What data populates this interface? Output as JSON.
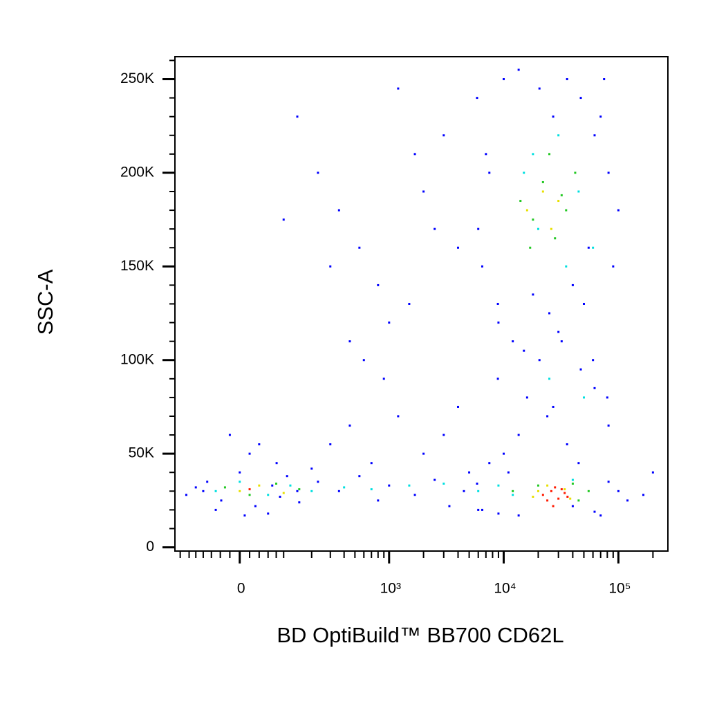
{
  "chart_data": {
    "type": "scatter",
    "xlabel": "BD OptiBuild™ BB700 CD62L",
    "ylabel": "SSC-A",
    "xscale": "biexponential",
    "xlim": [
      -170,
      270000
    ],
    "ylim": [
      -2000,
      262000
    ],
    "xticks": [
      0,
      {
        "value": 1000,
        "label": "10³"
      },
      {
        "value": 10000,
        "label": "10⁴"
      },
      {
        "value": 100000,
        "label": "10⁵"
      }
    ],
    "xminorticks": [
      -150,
      -120,
      -100,
      -80,
      -60,
      -40,
      -20,
      20,
      40,
      60,
      80,
      100,
      200,
      300,
      400,
      500,
      600,
      700,
      800,
      900,
      2000,
      3000,
      4000,
      5000,
      6000,
      7000,
      8000,
      9000,
      20000,
      30000,
      40000,
      50000,
      60000,
      70000,
      80000,
      90000,
      200000
    ],
    "yticks": [
      0,
      {
        "value": 50000,
        "label": "50K"
      },
      {
        "value": 100000,
        "label": "100K"
      },
      {
        "value": 150000,
        "label": "150K"
      },
      {
        "value": 200000,
        "label": "200K"
      },
      {
        "value": 250000,
        "label": "250K"
      }
    ],
    "yminorticks": [
      10000,
      20000,
      30000,
      40000,
      60000,
      70000,
      80000,
      90000,
      110000,
      120000,
      130000,
      140000,
      160000,
      170000,
      180000,
      190000,
      210000,
      220000,
      230000,
      240000,
      260000
    ],
    "series": [
      {
        "color": "#0000ff",
        "x": [
          -129,
          -70,
          -38,
          0,
          32,
          81,
          143,
          -100,
          -50,
          20,
          60,
          110,
          200,
          -20,
          40,
          90,
          150,
          -80,
          10,
          70,
          230,
          360,
          548,
          800,
          1000,
          1680,
          2500,
          3360,
          4500,
          5860,
          300,
          450,
          700,
          1200,
          2000,
          3000,
          4000,
          5000,
          6500,
          7500,
          143,
          230,
          360,
          548,
          800,
          1000,
          1200,
          1680,
          2000,
          2500,
          100,
          300,
          450,
          600,
          900,
          1500,
          3000,
          4000,
          5860,
          6500,
          7500,
          8900,
          10000,
          13500,
          20500,
          27000,
          35700,
          47000,
          62000,
          82000,
          100000,
          6000,
          9000,
          12000,
          18000,
          25000,
          40000,
          55000,
          70000,
          90000,
          7000,
          15000,
          30000,
          50000,
          75000,
          8900,
          13500,
          20500,
          27000,
          35700,
          47000,
          62000,
          82000,
          10000,
          16000,
          24000,
          32000,
          45000,
          60000,
          80000,
          6000,
          9000,
          13500,
          40000,
          62000,
          82000,
          100000,
          120000,
          165000,
          200000,
          11000,
          70000
        ],
        "values": [
          28000,
          35000,
          25000,
          40000,
          22000,
          45000,
          30000,
          32000,
          20000,
          50000,
          18000,
          38000,
          42000,
          60000,
          55000,
          27000,
          24000,
          30000,
          17000,
          33000,
          35000,
          30000,
          38000,
          25000,
          33000,
          28000,
          36000,
          22000,
          30000,
          34000,
          55000,
          65000,
          45000,
          70000,
          50000,
          60000,
          75000,
          40000,
          20000,
          45000,
          230000,
          200000,
          180000,
          160000,
          140000,
          120000,
          245000,
          210000,
          190000,
          170000,
          175000,
          150000,
          110000,
          100000,
          90000,
          130000,
          220000,
          160000,
          240000,
          150000,
          200000,
          130000,
          250000,
          255000,
          245000,
          230000,
          250000,
          240000,
          220000,
          200000,
          180000,
          170000,
          120000,
          110000,
          135000,
          125000,
          140000,
          160000,
          230000,
          150000,
          210000,
          105000,
          115000,
          130000,
          250000,
          90000,
          60000,
          100000,
          75000,
          55000,
          95000,
          85000,
          65000,
          50000,
          80000,
          70000,
          110000,
          45000,
          100000,
          80000,
          20000,
          18000,
          17000,
          22000,
          19000,
          35000,
          30000,
          25000,
          28000,
          40000,
          40000,
          17000
        ]
      },
      {
        "color": "#00e0e0",
        "x": [
          -50,
          0,
          60,
          120,
          200,
          400,
          700,
          1500,
          3000,
          6000,
          12000,
          15000,
          20000,
          30000,
          45000,
          60000,
          25000,
          18000,
          35000,
          50000,
          9000,
          40000
        ],
        "values": [
          30000,
          35000,
          28000,
          33000,
          30000,
          32000,
          31000,
          33000,
          34000,
          30000,
          28000,
          200000,
          170000,
          220000,
          190000,
          160000,
          90000,
          210000,
          150000,
          80000,
          33000,
          36000
        ]
      },
      {
        "color": "#22c822",
        "x": [
          -30,
          20,
          80,
          150,
          14000,
          18000,
          22000,
          28000,
          35000,
          42000,
          17000,
          25000,
          32000,
          12000,
          45000,
          20000,
          40000,
          55000
        ],
        "values": [
          32000,
          28000,
          34000,
          31000,
          185000,
          175000,
          195000,
          165000,
          180000,
          200000,
          160000,
          210000,
          188000,
          30000,
          25000,
          33000,
          34000,
          30000
        ]
      },
      {
        "color": "#e8e000",
        "x": [
          0,
          40,
          100,
          16000,
          22000,
          26000,
          30000,
          20000,
          18000,
          24000,
          34000,
          38000
        ],
        "values": [
          30000,
          33000,
          29000,
          180000,
          190000,
          170000,
          185000,
          30000,
          27000,
          33000,
          31000,
          26000
        ]
      },
      {
        "color": "#ff1a00",
        "x": [
          20,
          22000,
          26000,
          30000,
          34000,
          28000,
          24000,
          36000,
          32000,
          27000
        ],
        "values": [
          31000,
          28000,
          30000,
          26000,
          29000,
          32000,
          25000,
          27000,
          31000,
          22000
        ]
      }
    ]
  }
}
